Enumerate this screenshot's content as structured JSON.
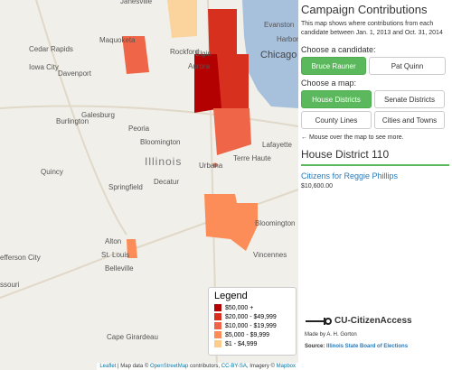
{
  "map": {
    "places": [
      "Janesville",
      "Rockford",
      "Elgin",
      "Evanston",
      "Harbor",
      "Chicago",
      "Aurora",
      "Maquoketa",
      "Cedar Rapids",
      "Iowa City",
      "Davenport",
      "Burlington",
      "Galesburg",
      "Peoria",
      "Bloomington",
      "Illinois",
      "Quincy",
      "Springfield",
      "Decatur",
      "Urbana",
      "Lafayette",
      "Terre Haute",
      "Bloomington",
      "efferson City",
      "Alton",
      "St. Louis",
      "Belleville",
      "ssouri",
      "Vincennes",
      "Cape Girardeau"
    ],
    "legend": {
      "title": "Legend",
      "items": [
        {
          "label": "$50,000 +",
          "color": "#b30000"
        },
        {
          "label": "$20,000 - $49,999",
          "color": "#d7301f"
        },
        {
          "label": "$10,000 - $19,999",
          "color": "#ef6548"
        },
        {
          "label": "$5,000 - $9,999",
          "color": "#fc8d59"
        },
        {
          "label": "$1 - $4,999",
          "color": "#fdcc8a"
        }
      ]
    },
    "attribution": [
      "Leaflet",
      " | Map data © ",
      "OpenStreetMap",
      " contributors, ",
      "CC-BY-SA",
      ", Imagery © ",
      "Mapbox"
    ]
  },
  "panel": {
    "title": "Campaign Contributions",
    "description": "This map shows where contributions from each candidate between Jan. 1, 2013 and Oct. 31, 2014",
    "candidate_prompt": "Choose a candidate:",
    "candidates": [
      "Bruce Rauner",
      "Pat Quinn"
    ],
    "map_prompt": "Choose a map:",
    "maps": [
      "House Districts",
      "Senate Districts",
      "County Lines",
      "Cities and Towns"
    ],
    "hint": "← Mouse over the map to see more.",
    "district": "House District 110",
    "committee": "Citizens for Reggie Phillips",
    "amount": "$10,600.00",
    "logo": "CU-CitizenAccess",
    "credit": "Made by A. H. Gorton",
    "source_label": "Source: ",
    "source": "Illinois State Board of Elections"
  }
}
